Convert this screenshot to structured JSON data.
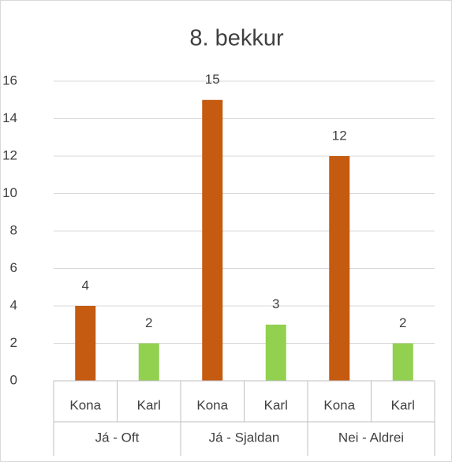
{
  "chart_data": {
    "type": "bar",
    "title": "8. bekkur",
    "groups": [
      "Já - Oft",
      "Já - Sjaldan",
      "Nei - Aldrei"
    ],
    "categories": [
      "Kona",
      "Karl",
      "Kona",
      "Karl",
      "Kona",
      "Karl"
    ],
    "values": [
      4,
      2,
      15,
      3,
      12,
      2
    ],
    "colors": [
      "#c55a11",
      "#92d050",
      "#c55a11",
      "#92d050",
      "#c55a11",
      "#92d050"
    ],
    "ylim": [
      0,
      16
    ],
    "yticks": [
      0,
      2,
      4,
      6,
      8,
      10,
      12,
      14,
      16
    ],
    "grid": true
  }
}
